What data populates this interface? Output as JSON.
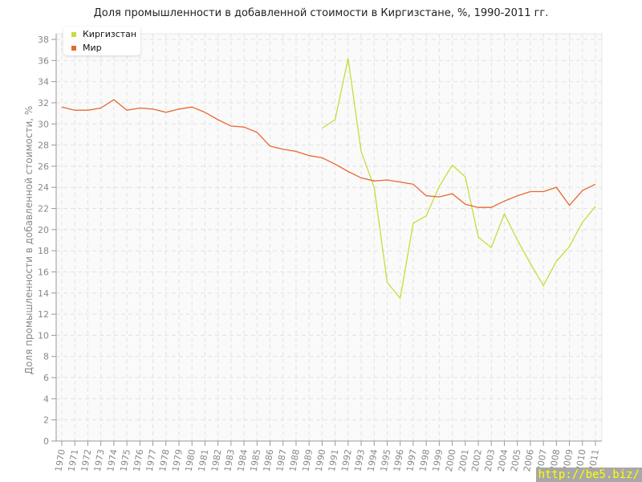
{
  "chart_data": {
    "type": "line",
    "title": "Доля промышленности в добавленной стоимости в Киргизстане, %, 1990-2011 гг.",
    "xlabel": "",
    "ylabel": "Доля промышленности в добавленной стоимости, %",
    "ylim": [
      0,
      38
    ],
    "yticks": [
      0,
      2,
      4,
      6,
      8,
      10,
      12,
      14,
      16,
      18,
      20,
      22,
      24,
      26,
      28,
      30,
      32,
      34,
      36,
      38
    ],
    "grid": true,
    "legend_position": "top-left",
    "x": [
      1970,
      1971,
      1972,
      1973,
      1974,
      1975,
      1976,
      1977,
      1978,
      1979,
      1980,
      1981,
      1982,
      1983,
      1984,
      1985,
      1986,
      1987,
      1988,
      1989,
      1990,
      1991,
      1992,
      1993,
      1994,
      1995,
      1996,
      1997,
      1998,
      1999,
      2000,
      2001,
      2002,
      2003,
      2004,
      2005,
      2006,
      2007,
      2008,
      2009,
      2010,
      2011
    ],
    "series": [
      {
        "name": "Киргизстан",
        "color": "#c5dd3a",
        "values": [
          null,
          null,
          null,
          null,
          null,
          null,
          null,
          null,
          null,
          null,
          null,
          null,
          null,
          null,
          null,
          null,
          null,
          null,
          null,
          null,
          29.6,
          30.4,
          36.2,
          27.4,
          24.0,
          15.0,
          13.5,
          20.6,
          21.3,
          24.1,
          26.1,
          25.0,
          19.3,
          18.3,
          21.5,
          19.0,
          16.8,
          14.7,
          17.0,
          18.4,
          20.7,
          22.2
        ]
      },
      {
        "name": "Мир",
        "color": "#e8682f",
        "values": [
          31.6,
          31.3,
          31.3,
          31.5,
          32.3,
          31.3,
          31.5,
          31.4,
          31.1,
          31.4,
          31.6,
          31.1,
          30.4,
          29.8,
          29.7,
          29.2,
          27.9,
          27.6,
          27.4,
          27.0,
          26.8,
          26.2,
          25.5,
          24.9,
          24.6,
          24.7,
          24.5,
          24.3,
          23.2,
          23.1,
          23.4,
          22.4,
          22.1,
          22.1,
          22.7,
          23.2,
          23.6,
          23.6,
          24.0,
          22.3,
          23.7,
          24.3
        ]
      }
    ]
  },
  "watermark": "http://be5.biz/"
}
